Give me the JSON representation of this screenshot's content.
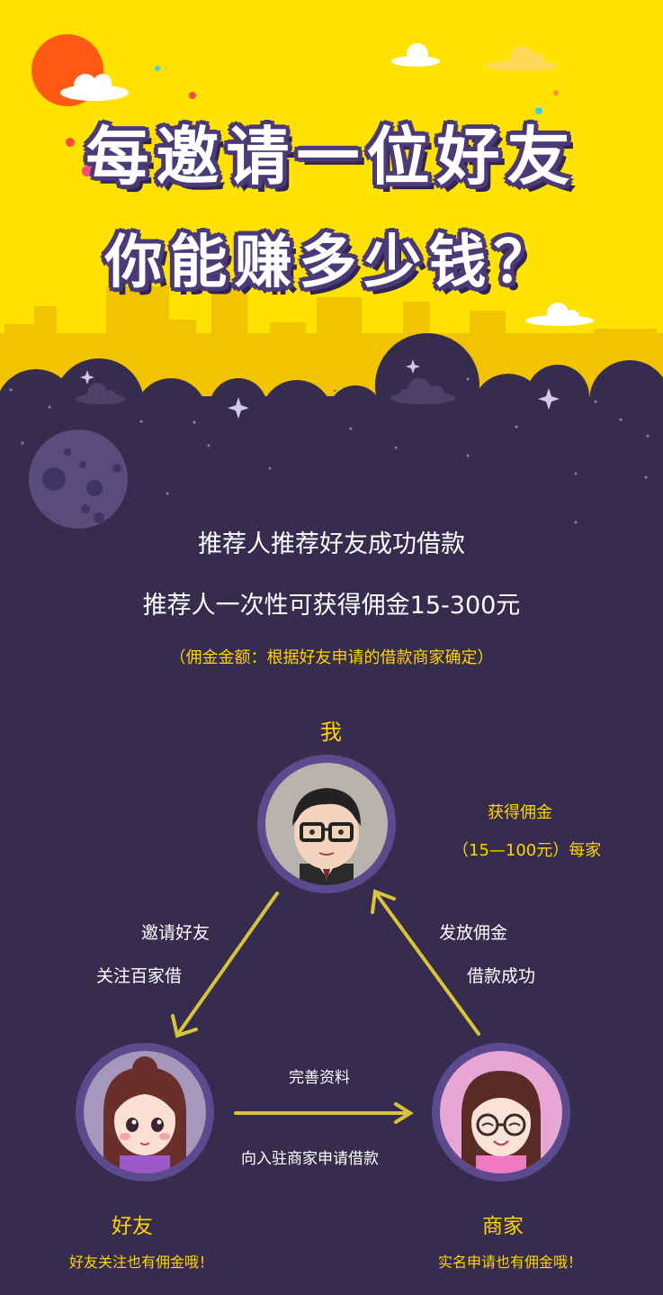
{
  "hero": {
    "title_line1": "每邀请一位好友",
    "title_line2": "你能赚多少钱？"
  },
  "intro": {
    "line1": "推荐人推荐好友成功借款",
    "line2": "推荐人一次性可获得佣金15-300元",
    "note": "（佣金金额：根据好友申请的借款商家确定）"
  },
  "diagram": {
    "me": {
      "name": "我",
      "reward_title": "获得佣金",
      "reward_detail": "（15—100元）每家"
    },
    "left_edge": {
      "line1": "邀请好友",
      "line2": "关注百家借"
    },
    "right_edge": {
      "line1": "发放佣金",
      "line2": "借款成功"
    },
    "bottom_edge": {
      "line1": "完善资料",
      "line2": "向入驻商家申请借款"
    },
    "friend": {
      "name": "好友",
      "note": "好友关注也有佣金哦！"
    },
    "merchant": {
      "name": "商家",
      "note": "实名申请也有佣金哦！"
    }
  },
  "colors": {
    "hero_bg": "#ffe200",
    "night_bg": "#352c4e",
    "accent_yellow": "#ffd400",
    "arrow": "#d8c43a",
    "avatar_ring": "#5c4a8f"
  }
}
